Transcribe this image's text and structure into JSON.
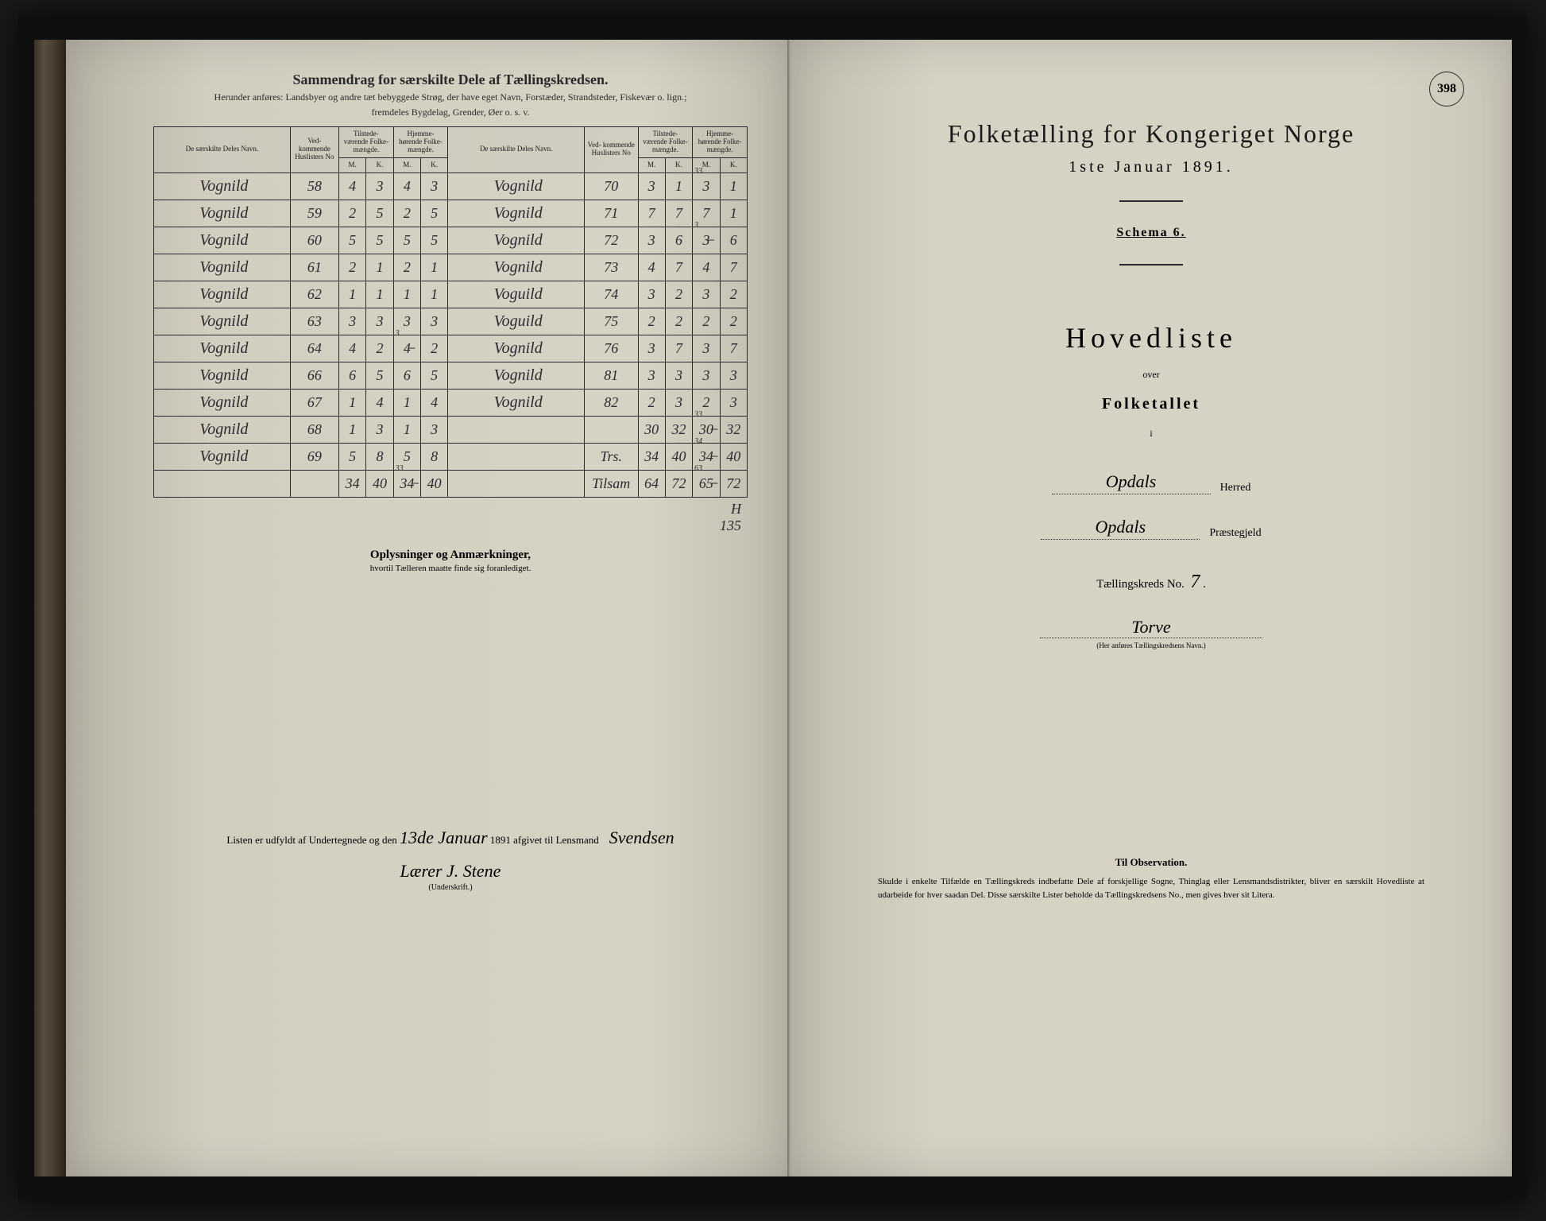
{
  "left": {
    "title1": "Sammendrag for særskilte Dele af Tællingskredsen.",
    "title2": "Herunder anføres: Landsbyer og andre tæt bebyggede Strøg, der have eget Navn, Forstæder, Strandsteder, Fiskevær o. lign.;",
    "title3": "fremdeles Bygdelag, Grender, Øer o. s. v.",
    "headers": {
      "name": "De særskilte Deles Navn.",
      "no": "Ved-\nkommende\nHuslisters\nNo",
      "tilstede": "Tilstede-\nværende\nFolke-\nmængde.",
      "hjemme": "Hjemme-\nhørende\nFolke-\nmængde.",
      "m": "M.",
      "k": "K."
    },
    "rowsL": [
      {
        "name": "Vognild",
        "no": "58",
        "tm": "4",
        "tk": "3",
        "hm": "4",
        "hk": "3"
      },
      {
        "name": "Vognild",
        "no": "59",
        "tm": "2",
        "tk": "5",
        "hm": "2",
        "hk": "5"
      },
      {
        "name": "Vognild",
        "no": "60",
        "tm": "5",
        "tk": "5",
        "hm": "5",
        "hk": "5"
      },
      {
        "name": "Vognild",
        "no": "61",
        "tm": "2",
        "tk": "1",
        "hm": "2",
        "hk": "1"
      },
      {
        "name": "Vognild",
        "no": "62",
        "tm": "1",
        "tk": "1",
        "hm": "1",
        "hk": "1"
      },
      {
        "name": "Vognild",
        "no": "63",
        "tm": "3",
        "tk": "3",
        "hm": "3",
        "hk": "3"
      },
      {
        "name": "Vognild",
        "no": "64",
        "tm": "4",
        "tk": "2",
        "hm": "4̶",
        "hk": "2",
        "hm_corr": "3"
      },
      {
        "name": "Vognild",
        "no": "66",
        "tm": "6",
        "tk": "5",
        "hm": "6",
        "hk": "5"
      },
      {
        "name": "Vognild",
        "no": "67",
        "tm": "1",
        "tk": "4",
        "hm": "1",
        "hk": "4"
      },
      {
        "name": "Vognild",
        "no": "68",
        "tm": "1",
        "tk": "3",
        "hm": "1",
        "hk": "3"
      },
      {
        "name": "Vognild",
        "no": "69",
        "tm": "5",
        "tk": "8",
        "hm": "5",
        "hk": "8"
      }
    ],
    "sumL": {
      "tm": "34",
      "tk": "40",
      "hm": "34̶",
      "hk": "40",
      "hm_corr": "33"
    },
    "rowsR": [
      {
        "name": "Vognild",
        "no": "70",
        "tm": "3",
        "tk": "1",
        "hm": "3",
        "hk": "1",
        "hm_corr": "33",
        "hk_note": "✓"
      },
      {
        "name": "Vognild",
        "no": "71",
        "tm": "7",
        "tk": "7",
        "hm": "7",
        "hk": "1"
      },
      {
        "name": "Vognild",
        "no": "72",
        "tm": "3",
        "tk": "6",
        "hm": "3̶",
        "hk": "6",
        "hm_corr": "3"
      },
      {
        "name": "Vognild",
        "no": "73",
        "tm": "4",
        "tk": "7",
        "hm": "4",
        "hk": "7"
      },
      {
        "name": "Voguild",
        "no": "74",
        "tm": "3",
        "tk": "2",
        "hm": "3",
        "hk": "2"
      },
      {
        "name": "Voguild",
        "no": "75",
        "tm": "2",
        "tk": "2",
        "hm": "2",
        "hk": "2"
      },
      {
        "name": "Vognild",
        "no": "76",
        "tm": "3",
        "tk": "7",
        "hm": "3",
        "hk": "7"
      },
      {
        "name": "Vognild",
        "no": "81",
        "tm": "3",
        "tk": "3",
        "hm": "3",
        "hk": "3"
      },
      {
        "name": "Vognild",
        "no": "82",
        "tm": "2",
        "tk": "3",
        "hm": "2",
        "hk": "3"
      },
      {
        "name": "",
        "no": "",
        "tm": "30",
        "tk": "32",
        "hm": "30̶",
        "hk": "32",
        "hm_corr": "33"
      },
      {
        "name": "",
        "no": "Trs.",
        "tm": "34",
        "tk": "40",
        "hm": "34̶",
        "hk": "40",
        "hm_corr": "34"
      }
    ],
    "sumR": {
      "no": "Tilsam",
      "tm": "64",
      "tk": "72",
      "hm": "65̶",
      "hk": "72",
      "hm_corr": "63"
    },
    "below1": "H",
    "below2": "135",
    "oplys_title": "Oplysninger og Anmærkninger,",
    "oplys_sub": "hvortil Tælleren maatte finde sig foranlediget.",
    "sig_line_1": "Listen er udfyldt af Undertegnede og den",
    "sig_date": "13de Januar",
    "sig_line_2": "1891 afgivet til Lensmand",
    "sig_lensmand": "Svendsen",
    "sig_teller": "Lærer J. Stene",
    "underskrift": "(Underskrift.)"
  },
  "right": {
    "page_num": "398",
    "title": "Folketælling for Kongeriget Norge",
    "date": "1ste Januar 1891.",
    "schema": "Schema 6.",
    "hoved": "Hovedliste",
    "over": "over",
    "folket": "Folketallet",
    "i": "i",
    "herred_val": "Opdals",
    "herred_lbl": "Herred",
    "praeste_val": "Opdals",
    "praeste_lbl": "Præstegjeld",
    "kreds_lbl": "Tællingskreds No.",
    "kreds_no": "7",
    "kreds_name": "Torve",
    "kreds_caption": "(Her anføres Tællingskredsens Navn.)",
    "obs_title": "Til Observation.",
    "obs_body": "Skulde i enkelte Tilfælde en Tællingskreds indbefatte Dele af forskjellige Sogne, Thinglag eller Lensmandsdistrikter, bliver en særskilt Hovedliste at udarbeide for hver saadan Del. Disse særskilte Lister beholde da Tællingskredsens No., men gives hver sit Litera."
  },
  "colors": {
    "paper": "#d6d2c4",
    "ink": "#1a1a1a",
    "hand": "#2a2a30",
    "bg": "#1a1a1a"
  }
}
